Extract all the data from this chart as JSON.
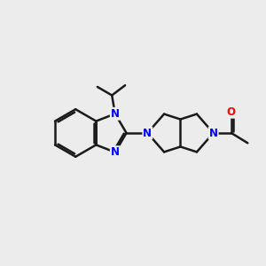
{
  "background_color": "#ececec",
  "bond_color": "#1a1a1a",
  "nitrogen_color": "#0000ff",
  "oxygen_color": "#ff0000",
  "bond_width": 1.8,
  "figsize": [
    3.0,
    3.0
  ],
  "dpi": 100,
  "xlim": [
    0,
    10
  ],
  "ylim": [
    0,
    10
  ],
  "fontsize": 8.5
}
